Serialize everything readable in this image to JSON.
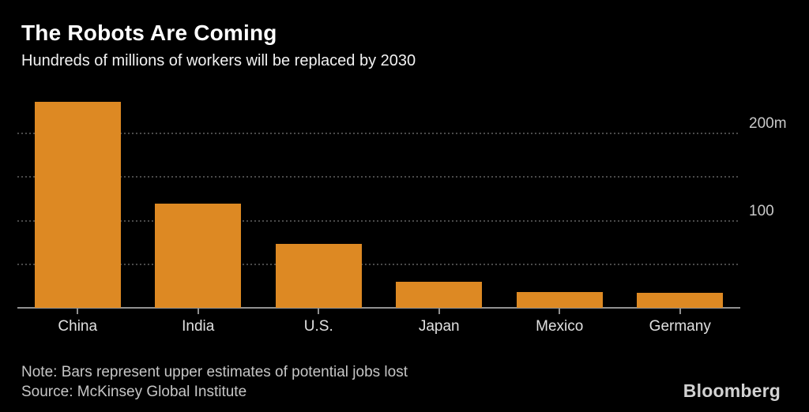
{
  "chart_data": {
    "type": "bar",
    "title": "The Robots Are Coming",
    "subtitle": "Hundreds of millions of workers will be replaced by 2030",
    "categories": [
      "China",
      "India",
      "U.S.",
      "Japan",
      "Mexico",
      "Germany"
    ],
    "values": [
      236,
      120,
      73,
      30,
      18,
      17
    ],
    "unit": "millions of workers",
    "ylim": [
      0,
      250
    ],
    "gridline_values": [
      50,
      100,
      150,
      200
    ],
    "axis_tick_labels": [
      {
        "value": 200,
        "label": "200m"
      },
      {
        "value": 100,
        "label": "100"
      }
    ],
    "grid": "dotted horizontal",
    "legend_position": "none",
    "bar_color": "#dd8923"
  },
  "colors": {
    "background": "#000000",
    "bar": "#dd8923",
    "gridline": "#4a4a4a",
    "axis_line": "#919191",
    "axis_label": "#c9c9c9",
    "category_label": "#e0e0e0",
    "title": "#ffffff",
    "footnote": "#c6c6c6"
  },
  "footer": {
    "note": "Note: Bars represent upper estimates of potential jobs lost",
    "source": "Source: McKinsey Global Institute",
    "brand": "Bloomberg"
  }
}
